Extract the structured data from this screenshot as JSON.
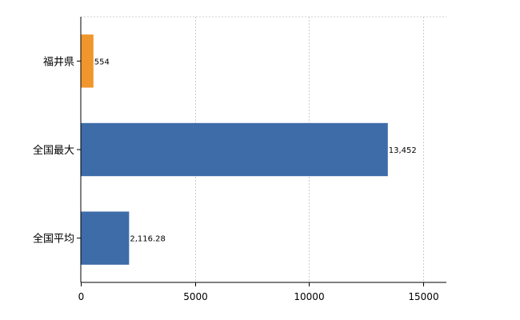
{
  "chart_data": {
    "type": "bar",
    "orientation": "horizontal",
    "categories": [
      "福井県",
      "全国最大",
      "全国平均"
    ],
    "values": [
      554,
      13452,
      2116.28
    ],
    "value_labels": [
      "554",
      "13,452",
      "2,116.28"
    ],
    "bar_colors": [
      "#f0962d",
      "#3d6ca9",
      "#3d6ca9"
    ],
    "xlim": [
      0,
      16000
    ],
    "xticks": [
      0,
      5000,
      10000,
      15000
    ],
    "xtick_labels": [
      "0",
      "5000",
      "10000",
      "15000"
    ],
    "grid": "vertical dashed",
    "axis_color": "#000000",
    "grid_color": "#cccccc"
  }
}
